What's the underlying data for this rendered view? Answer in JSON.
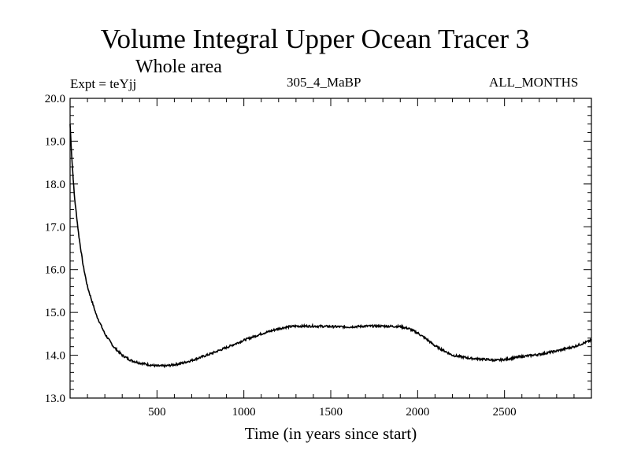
{
  "header": {
    "title": "Volume Integral Upper Ocean Tracer 3",
    "subtitle": "Whole area",
    "experiment": "Expt = teYjj",
    "run": "305_4_MaBP",
    "months": "ALL_MONTHS"
  },
  "chart_data": {
    "type": "line",
    "title": "Volume Integral Upper Ocean Tracer 3",
    "xlabel": "Time (in years since start)",
    "ylabel": "",
    "xlim": [
      0,
      3000
    ],
    "ylim": [
      13.0,
      20.0
    ],
    "xticks": [
      500,
      1000,
      1500,
      2000,
      2500
    ],
    "yticks": [
      13.0,
      14.0,
      15.0,
      16.0,
      17.0,
      18.0,
      19.0,
      20.0
    ],
    "series": [
      {
        "name": "teYjj",
        "color": "#000000",
        "x": [
          0,
          10,
          25,
          50,
          75,
          100,
          150,
          200,
          250,
          300,
          350,
          400,
          450,
          500,
          550,
          600,
          650,
          700,
          800,
          900,
          1000,
          1100,
          1200,
          1250,
          1300,
          1400,
          1500,
          1600,
          1700,
          1800,
          1900,
          1950,
          2000,
          2050,
          2100,
          2200,
          2300,
          2400,
          2450,
          2500,
          2600,
          2700,
          2800,
          2900,
          3000
        ],
        "values": [
          19.4,
          18.6,
          17.7,
          16.8,
          16.1,
          15.6,
          14.95,
          14.5,
          14.2,
          14.0,
          13.88,
          13.82,
          13.78,
          13.75,
          13.75,
          13.78,
          13.82,
          13.88,
          14.02,
          14.18,
          14.35,
          14.5,
          14.62,
          14.66,
          14.68,
          14.68,
          14.67,
          14.66,
          14.68,
          14.68,
          14.67,
          14.62,
          14.52,
          14.38,
          14.22,
          14.0,
          13.93,
          13.9,
          13.88,
          13.9,
          13.97,
          14.02,
          14.1,
          14.2,
          14.35
        ]
      }
    ]
  }
}
